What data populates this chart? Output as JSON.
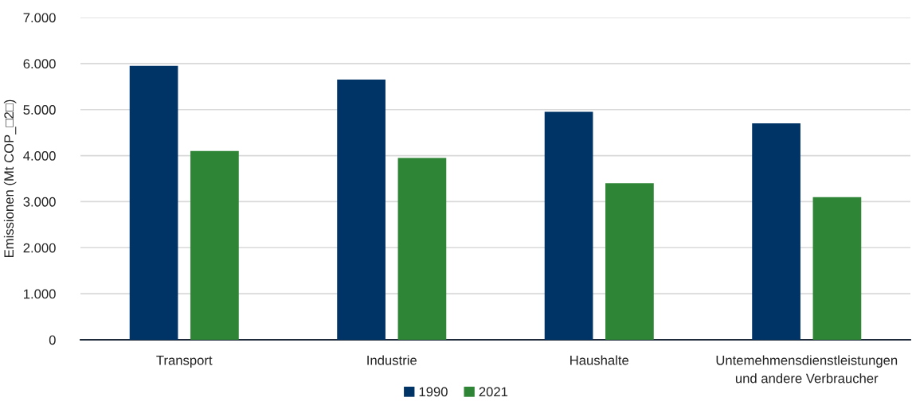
{
  "chart_data": {
    "type": "bar",
    "ylabel": "Emissionen (Mt COP_□2□)",
    "categories": [
      "Transport",
      "Industrie",
      "Haushalte",
      "Untemehmensdienstleistungen\nund andere Verbraucher"
    ],
    "series": [
      {
        "name": "1990",
        "color": "#003366",
        "values": [
          5950,
          5650,
          4950,
          4700
        ]
      },
      {
        "name": "2021",
        "color": "#2e8535",
        "values": [
          4100,
          3950,
          3400,
          3100
        ]
      }
    ],
    "ylim": [
      0,
      7000
    ],
    "yticks": [
      {
        "value": 0,
        "label": "0"
      },
      {
        "value": 1000,
        "label": "1.000"
      },
      {
        "value": 2000,
        "label": "2.000"
      },
      {
        "value": 3000,
        "label": "3.000"
      },
      {
        "value": 4000,
        "label": "4.000"
      },
      {
        "value": 5000,
        "label": "5.000"
      },
      {
        "value": 6000,
        "label": "6.000"
      },
      {
        "value": 7000,
        "label": "7.000"
      }
    ],
    "grid": "y",
    "legend": "bottom"
  }
}
